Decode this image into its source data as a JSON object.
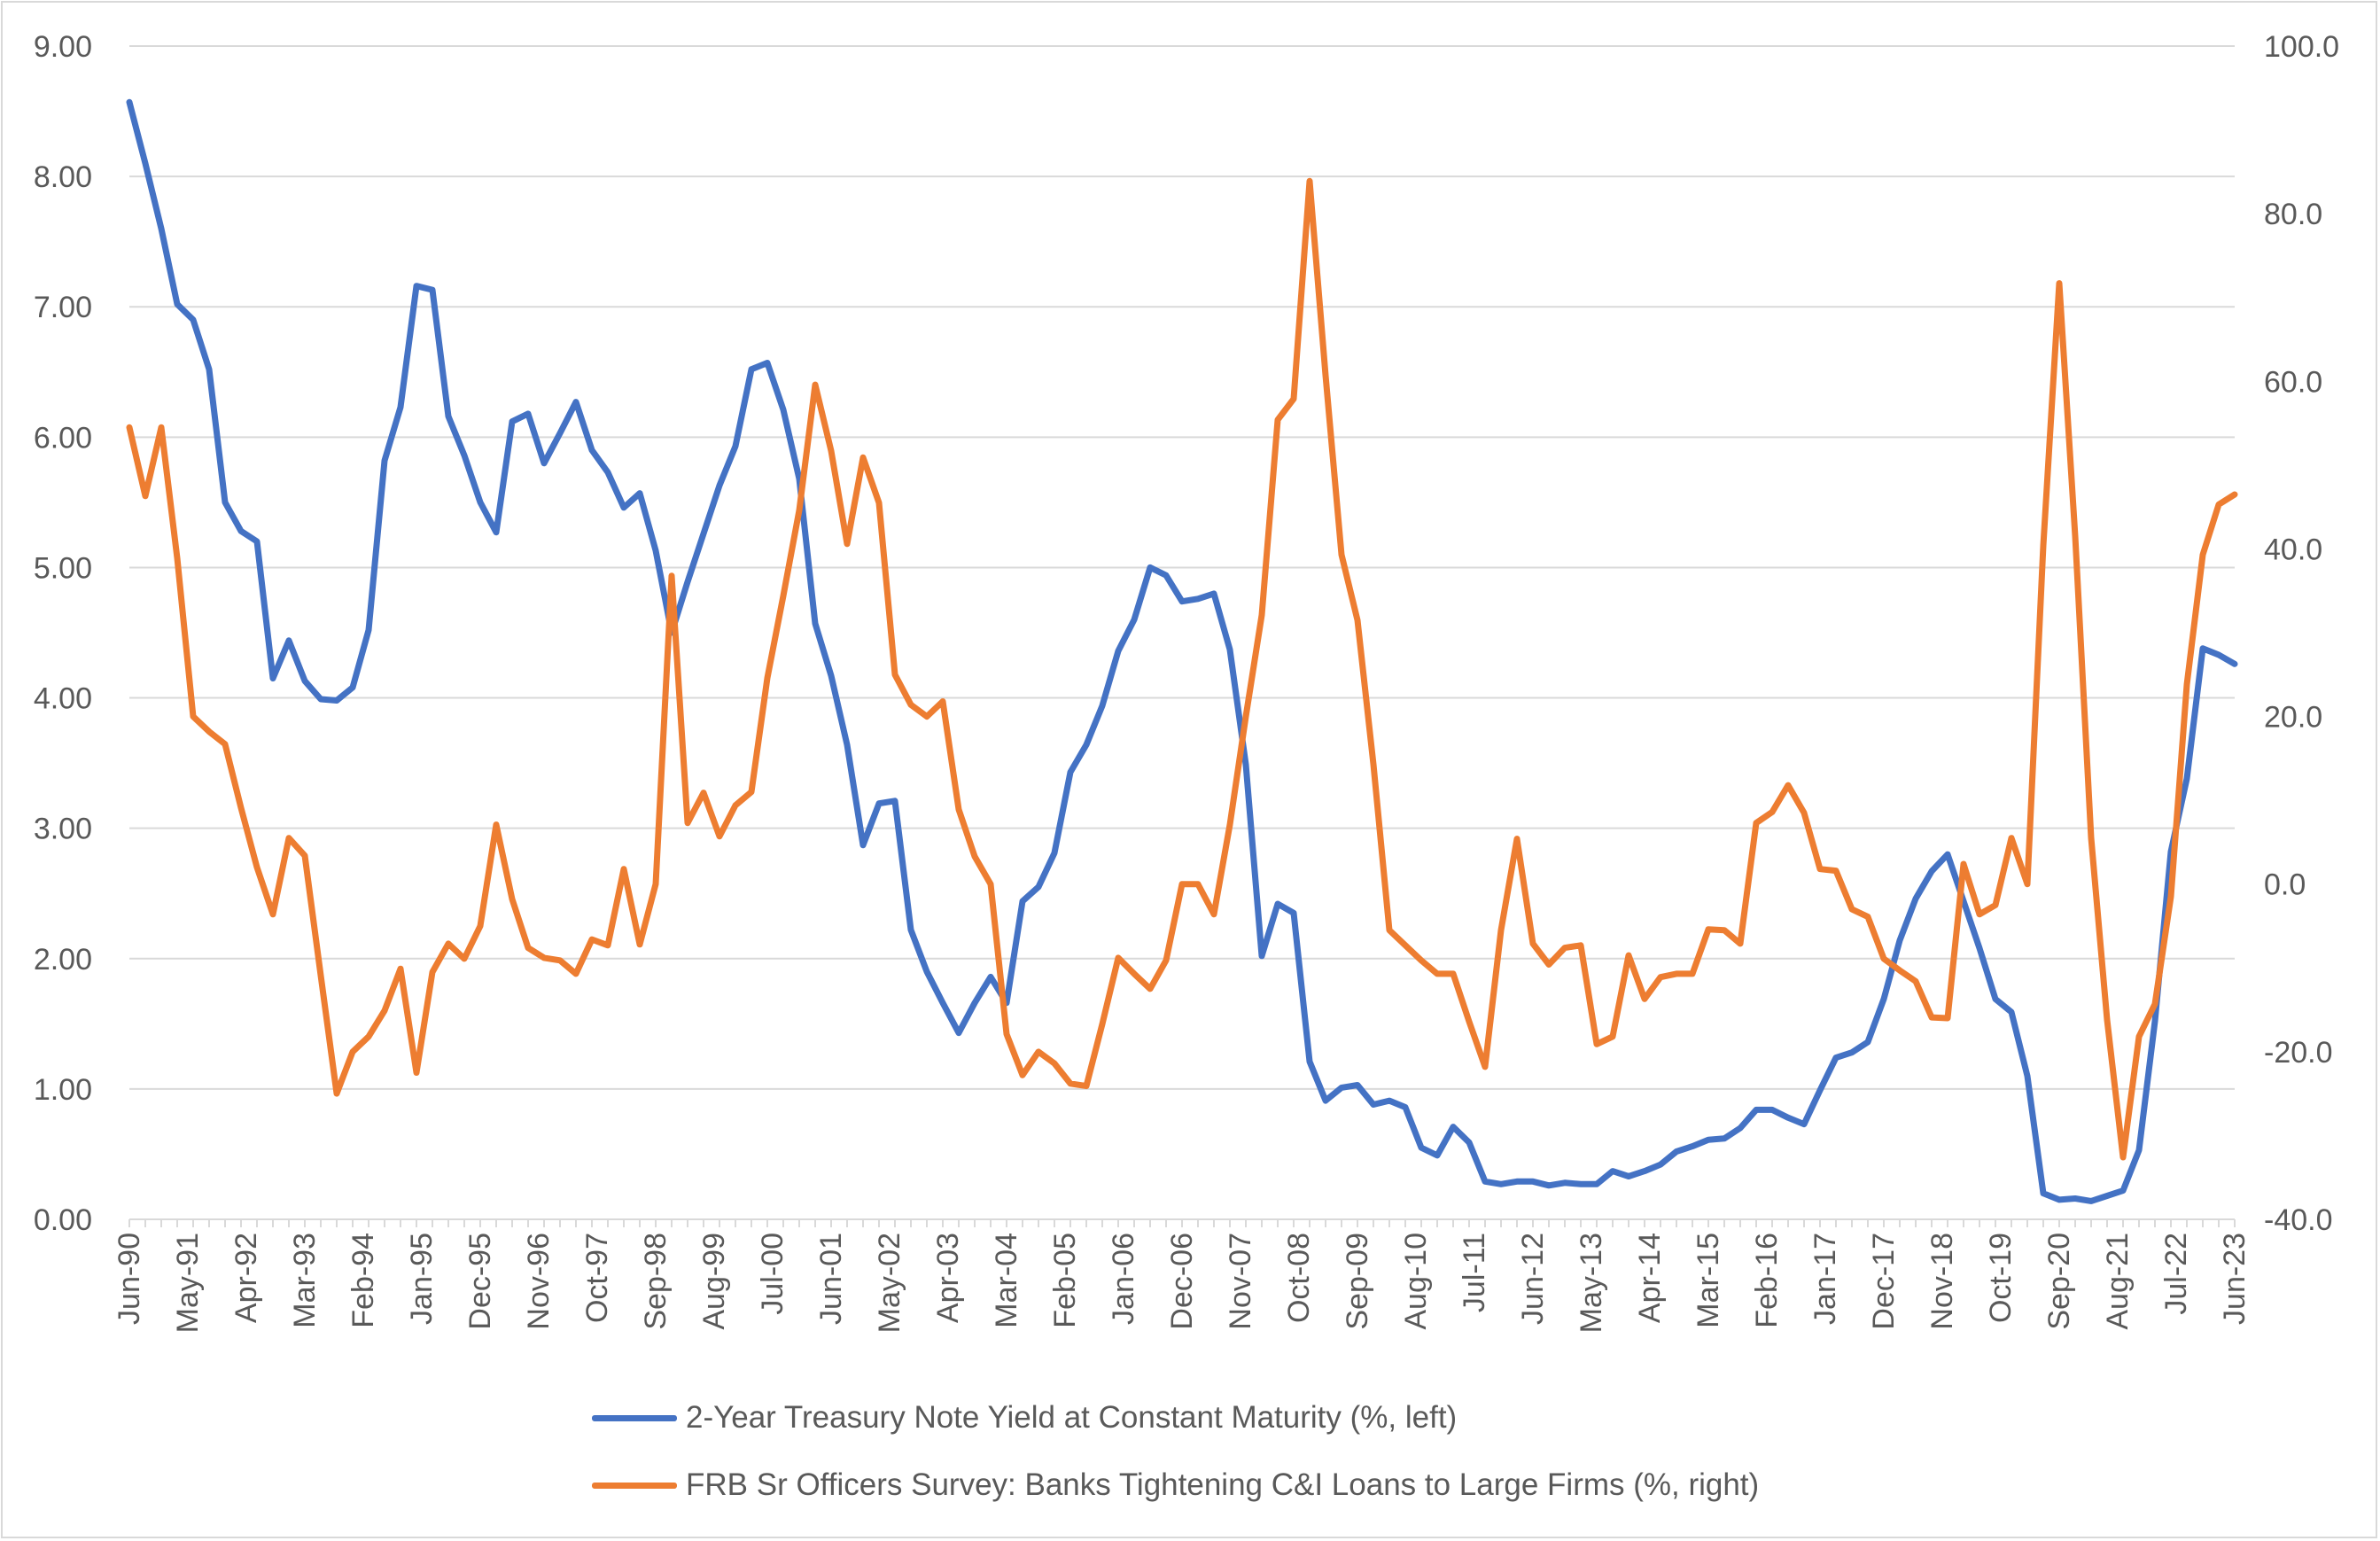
{
  "chart_data": {
    "type": "line",
    "title": "",
    "x_tick_labels": [
      "Jun-90",
      "May-91",
      "Apr-92",
      "Mar-93",
      "Feb-94",
      "Jan-95",
      "Dec-95",
      "Nov-96",
      "Oct-97",
      "Sep-98",
      "Aug-99",
      "Jul-00",
      "Jun-01",
      "May-02",
      "Apr-03",
      "Mar-04",
      "Feb-05",
      "Jan-06",
      "Dec-06",
      "Nov-07",
      "Oct-08",
      "Sep-09",
      "Aug-10",
      "Jul-11",
      "Jun-12",
      "May-13",
      "Apr-14",
      "Mar-15",
      "Feb-16",
      "Jan-17",
      "Dec-17",
      "Nov-18",
      "Oct-19",
      "Sep-20",
      "Aug-21",
      "Jul-22",
      "Jun-23"
    ],
    "x_start": "Jun-90",
    "x_end": "Jun-23",
    "x_frequency": "quarterly",
    "left_axis": {
      "ylim": [
        0,
        9
      ],
      "ticks": [
        "0.00",
        "1.00",
        "2.00",
        "3.00",
        "4.00",
        "5.00",
        "6.00",
        "7.00",
        "8.00",
        "9.00"
      ]
    },
    "right_axis": {
      "ylim": [
        -40,
        100
      ],
      "ticks": [
        "-40.0",
        "-20.0",
        "0.0",
        "20.0",
        "40.0",
        "60.0",
        "80.0",
        "100.0"
      ]
    },
    "grid": "horizontal",
    "legend_position": "bottom",
    "series": [
      {
        "name": "2-Year Treasury Note Yield at Constant Maturity (%, left)",
        "axis": "left",
        "color": "#4472C4",
        "values": [
          8.57,
          8.1,
          7.6,
          7.02,
          6.9,
          6.52,
          5.5,
          5.28,
          5.2,
          4.15,
          4.44,
          4.13,
          3.99,
          3.98,
          4.08,
          4.52,
          5.82,
          6.23,
          7.16,
          7.13,
          6.16,
          5.86,
          5.5,
          5.27,
          6.12,
          6.18,
          5.8,
          6.03,
          6.27,
          5.9,
          5.73,
          5.46,
          5.57,
          5.13,
          4.5,
          4.89,
          5.26,
          5.63,
          5.93,
          6.52,
          6.57,
          6.21,
          5.68,
          4.57,
          4.17,
          3.64,
          2.87,
          3.19,
          3.21,
          2.22,
          1.9,
          1.66,
          1.43,
          1.66,
          1.86,
          1.66,
          2.44,
          2.55,
          2.81,
          3.43,
          3.64,
          3.94,
          4.36,
          4.6,
          5.0,
          4.94,
          4.74,
          4.76,
          4.8,
          4.37,
          3.49,
          2.02,
          2.42,
          2.35,
          1.21,
          0.91,
          1.01,
          1.03,
          0.88,
          0.91,
          0.86,
          0.55,
          0.49,
          0.71,
          0.59,
          0.29,
          0.27,
          0.29,
          0.29,
          0.26,
          0.28,
          0.27,
          0.27,
          0.37,
          0.33,
          0.37,
          0.42,
          0.52,
          0.56,
          0.61,
          0.62,
          0.7,
          0.84,
          0.84,
          0.78,
          0.73,
          0.99,
          1.24,
          1.28,
          1.36,
          1.69,
          2.14,
          2.46,
          2.67,
          2.8,
          2.44,
          2.08,
          1.69,
          1.59,
          1.1,
          0.2,
          0.15,
          0.16,
          0.14,
          0.18,
          0.22,
          0.53,
          1.52,
          2.82,
          3.38,
          4.38,
          4.33,
          4.26
        ]
      },
      {
        "name": "FRB Sr Officers Survey: Banks Tightening C&I Loans to Large Firms (%, right)",
        "axis": "right",
        "color": "#ED7D31",
        "values": [
          54.5,
          46.3,
          54.5,
          38.9,
          20.0,
          18.2,
          16.7,
          9.1,
          2.0,
          -3.6,
          5.5,
          3.4,
          -10.9,
          -25.0,
          -20.0,
          -18.2,
          -15.1,
          -10.1,
          -22.5,
          -10.5,
          -7.1,
          -8.9,
          -5.0,
          7.1,
          -1.8,
          -7.6,
          -8.8,
          -9.1,
          -10.7,
          -6.6,
          -7.3,
          1.8,
          -7.2,
          0.0,
          36.8,
          7.3,
          10.9,
          5.7,
          9.4,
          11.0,
          24.6,
          34.4,
          44.6,
          59.6,
          51.7,
          40.6,
          50.9,
          45.5,
          25.0,
          21.4,
          20.0,
          21.8,
          8.9,
          3.3,
          0.0,
          -17.9,
          -22.8,
          -20.0,
          -21.4,
          -23.8,
          -24.1,
          -16.7,
          -8.8,
          -10.7,
          -12.5,
          -9.1,
          0.0,
          0.0,
          -3.6,
          7.1,
          20.0,
          32.1,
          55.4,
          57.9,
          83.9,
          60.7,
          39.3,
          31.5,
          14.3,
          -5.5,
          -7.3,
          -9.1,
          -10.7,
          -10.7,
          -16.4,
          -21.8,
          -5.5,
          5.4,
          -7.1,
          -9.6,
          -7.6,
          -7.3,
          -19.1,
          -18.2,
          -8.5,
          -13.7,
          -11.1,
          -10.7,
          -10.7,
          -5.4,
          -5.5,
          -7.1,
          7.3,
          8.6,
          11.8,
          8.5,
          1.8,
          1.6,
          -3.0,
          -3.9,
          -8.9,
          -10.3,
          -11.6,
          -15.9,
          -16.0,
          2.4,
          -3.6,
          -2.5,
          5.5,
          0.0,
          40.4,
          71.7,
          41.5,
          5.5,
          -16.2,
          -32.6,
          -18.2,
          -14.3,
          -1.5,
          23.8,
          39.3,
          45.3,
          46.5
        ]
      }
    ]
  },
  "legend": {
    "series_1": "2-Year Treasury Note Yield at Constant Maturity (%, left)",
    "series_2": "FRB Sr Officers Survey: Banks Tightening C&I Loans to Large Firms (%, right)"
  }
}
